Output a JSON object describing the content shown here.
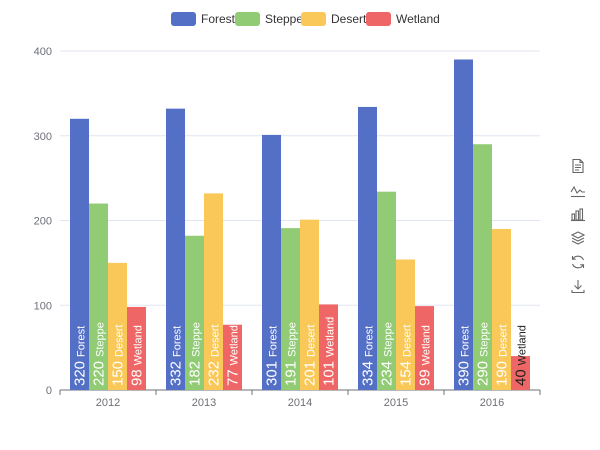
{
  "chart_data": {
    "type": "bar",
    "title": "",
    "xlabel": "",
    "ylabel": "",
    "categories": [
      "2012",
      "2013",
      "2014",
      "2015",
      "2016"
    ],
    "ylim": [
      0,
      400
    ],
    "yticks": [
      0,
      100,
      200,
      300,
      400
    ],
    "grid": true,
    "legend_position": "top-center",
    "data_labels": "rotated-inside-bottom",
    "series": [
      {
        "name": "Forest",
        "color": "#5470c6",
        "values": [
          320,
          332,
          301,
          334,
          390
        ]
      },
      {
        "name": "Steppe",
        "color": "#91cc75",
        "values": [
          220,
          182,
          191,
          234,
          290
        ]
      },
      {
        "name": "Desert",
        "color": "#fac858",
        "values": [
          150,
          232,
          201,
          154,
          190
        ]
      },
      {
        "name": "Wetland",
        "color": "#ee6666",
        "values": [
          98,
          77,
          101,
          99,
          40
        ]
      }
    ]
  },
  "toolbox": {
    "icons": [
      "data-view-icon",
      "line-chart-icon",
      "bar-chart-icon",
      "stack-icon",
      "restore-icon",
      "save-image-icon"
    ]
  }
}
